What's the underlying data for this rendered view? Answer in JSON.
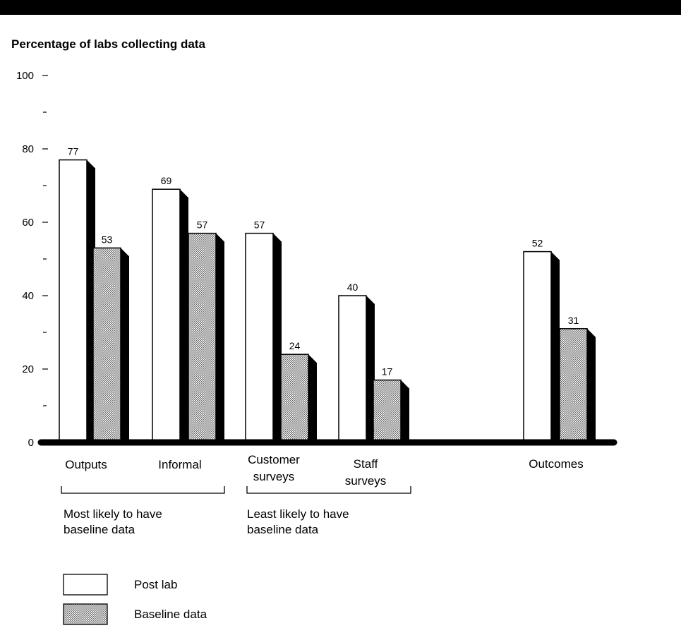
{
  "chart_data": {
    "type": "bar",
    "title": "Percentage of  labs collecting data",
    "xlabel": "",
    "ylabel": "",
    "ylim": [
      0,
      100
    ],
    "yticks": [
      "0",
      "20",
      "40",
      "60",
      "80",
      "100"
    ],
    "categories": [
      [
        "Outputs"
      ],
      [
        "Informal"
      ],
      [
        "Customer",
        "surveys"
      ],
      [
        "Staff",
        "surveys"
      ],
      [
        "Outcomes"
      ]
    ],
    "series": [
      {
        "name": "Post lab",
        "values": [
          77,
          69,
          57,
          40,
          52
        ],
        "fill": "#ffffff"
      },
      {
        "name": "Baseline data",
        "values": [
          53,
          57,
          24,
          17,
          31
        ],
        "fill": "#b8b8b8"
      }
    ],
    "groups": [
      {
        "label": [
          "Most likely to have",
          "baseline data"
        ],
        "categories": [
          0,
          1
        ]
      },
      {
        "label": [
          "Least likely to have",
          "baseline data"
        ],
        "categories": [
          2,
          3
        ]
      }
    ],
    "grid": false,
    "legend_position": "bottom-left",
    "colors": {
      "shadow": "#000000",
      "baseline_hatch": "#b8b8b8",
      "background": "#ffffff"
    }
  }
}
